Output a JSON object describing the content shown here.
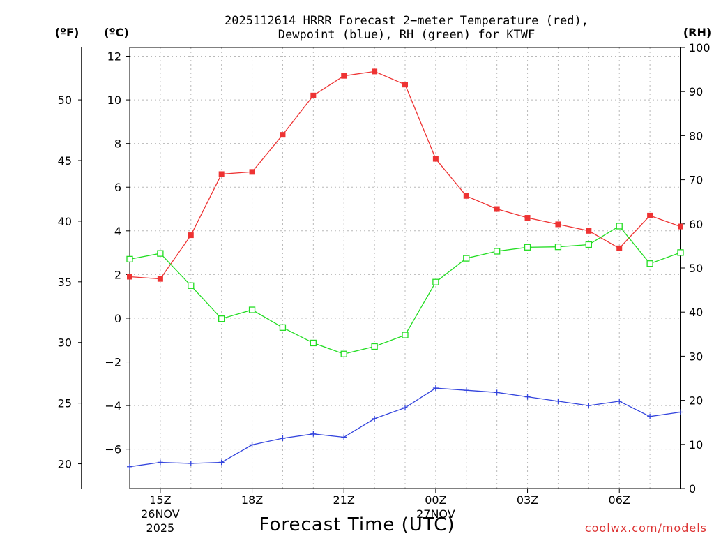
{
  "chart_data": {
    "type": "line",
    "title_line1": "2025112614 HRRR Forecast 2−meter Temperature (red),",
    "title_line2": "Dewpoint (blue), RH (green) for KTWF",
    "xlabel": "Forecast Time (UTC)",
    "credit": "coolwx.com/models",
    "unit_labels": {
      "fahrenheit": "(ºF)",
      "celsius": "(ºC)",
      "rh": "(RH)"
    },
    "x_hours": [
      14,
      15,
      16,
      17,
      18,
      19,
      20,
      21,
      22,
      23,
      24,
      25,
      26,
      27,
      28,
      29,
      30,
      31,
      32
    ],
    "xlim": [
      14,
      32
    ],
    "x_ticks": [
      {
        "hour": 15,
        "label": "15Z",
        "sub1": "26NOV",
        "sub2": "2025"
      },
      {
        "hour": 18,
        "label": "18Z"
      },
      {
        "hour": 21,
        "label": "21Z"
      },
      {
        "hour": 24,
        "label": "00Z",
        "sub1": "27NOV"
      },
      {
        "hour": 27,
        "label": "03Z"
      },
      {
        "hour": 30,
        "label": "06Z"
      }
    ],
    "left_c_axis": {
      "ylim": [
        -7.8,
        12.4
      ],
      "ticks": [
        -6,
        -4,
        -2,
        0,
        2,
        4,
        6,
        8,
        10,
        12
      ]
    },
    "left_f_axis": {
      "ticks": [
        20,
        25,
        30,
        35,
        40,
        45,
        50
      ]
    },
    "right_rh_axis": {
      "ylim": [
        0,
        100
      ],
      "ticks": [
        0,
        10,
        20,
        30,
        40,
        50,
        60,
        70,
        80,
        90,
        100
      ]
    },
    "series": [
      {
        "name": "Temperature",
        "unit": "C",
        "color": "#ee3333",
        "marker": "filled-square",
        "values": [
          1.9,
          1.8,
          3.8,
          6.6,
          6.7,
          8.4,
          10.2,
          11.1,
          11.3,
          10.7,
          7.3,
          5.6,
          5.0,
          4.6,
          4.3,
          4.0,
          3.2,
          4.7,
          4.2
        ]
      },
      {
        "name": "Dewpoint",
        "unit": "C",
        "color": "#3344dd",
        "marker": "plus",
        "values": [
          -6.8,
          -6.6,
          -6.65,
          -6.6,
          -5.8,
          -5.5,
          -5.3,
          -5.45,
          -4.6,
          -4.1,
          -3.2,
          -3.3,
          -3.4,
          -3.6,
          -3.8,
          -4.0,
          -3.8,
          -4.5,
          -4.3
        ]
      },
      {
        "name": "RH",
        "unit": "%",
        "color": "#22dd22",
        "marker": "open-square",
        "values": [
          52,
          53.3,
          46,
          38.5,
          40.5,
          36.5,
          33,
          30.5,
          32.2,
          34.8,
          46.8,
          52.2,
          53.8,
          54.7,
          54.8,
          55.3,
          59.5,
          51,
          53.5
        ]
      }
    ]
  }
}
